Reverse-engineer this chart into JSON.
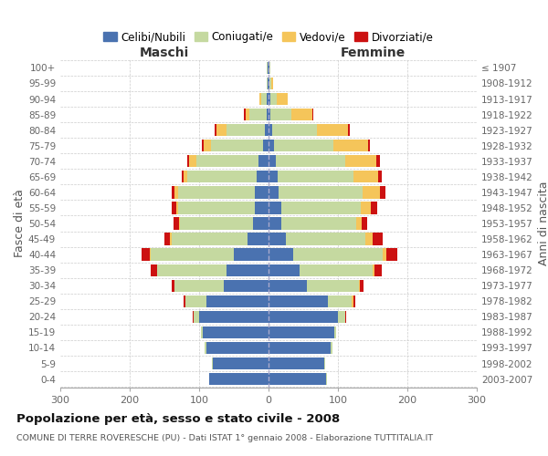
{
  "age_groups": [
    "0-4",
    "5-9",
    "10-14",
    "15-19",
    "20-24",
    "25-29",
    "30-34",
    "35-39",
    "40-44",
    "45-49",
    "50-54",
    "55-59",
    "60-64",
    "65-69",
    "70-74",
    "75-79",
    "80-84",
    "85-89",
    "90-94",
    "95-99",
    "100+"
  ],
  "birth_years": [
    "2003-2007",
    "1998-2002",
    "1993-1997",
    "1988-1992",
    "1983-1987",
    "1978-1982",
    "1973-1977",
    "1968-1972",
    "1963-1967",
    "1958-1962",
    "1953-1957",
    "1948-1952",
    "1943-1947",
    "1938-1942",
    "1933-1937",
    "1928-1932",
    "1923-1927",
    "1918-1922",
    "1913-1917",
    "1908-1912",
    "≤ 1907"
  ],
  "maschi": {
    "celibi": [
      85,
      80,
      90,
      95,
      100,
      90,
      65,
      60,
      50,
      30,
      22,
      20,
      20,
      17,
      14,
      8,
      5,
      3,
      2,
      1,
      1
    ],
    "coniugati": [
      1,
      1,
      2,
      3,
      8,
      30,
      70,
      100,
      120,
      110,
      105,
      110,
      110,
      100,
      90,
      75,
      55,
      25,
      8,
      2,
      1
    ],
    "vedovi": [
      0,
      0,
      0,
      0,
      0,
      0,
      0,
      0,
      1,
      2,
      2,
      3,
      5,
      5,
      10,
      10,
      15,
      5,
      3,
      0,
      0
    ],
    "divorziati": [
      0,
      0,
      0,
      0,
      1,
      3,
      5,
      10,
      12,
      8,
      8,
      7,
      5,
      3,
      3,
      3,
      2,
      2,
      0,
      0,
      0
    ]
  },
  "femmine": {
    "nubili": [
      83,
      80,
      90,
      95,
      100,
      85,
      55,
      45,
      35,
      25,
      18,
      18,
      15,
      13,
      10,
      8,
      5,
      3,
      2,
      1,
      1
    ],
    "coniugate": [
      1,
      1,
      2,
      3,
      10,
      35,
      75,
      105,
      130,
      115,
      108,
      115,
      120,
      110,
      100,
      85,
      65,
      30,
      10,
      3,
      1
    ],
    "vedove": [
      0,
      0,
      0,
      0,
      1,
      2,
      2,
      3,
      5,
      10,
      8,
      15,
      25,
      35,
      45,
      50,
      45,
      30,
      15,
      3,
      1
    ],
    "divorziate": [
      0,
      0,
      0,
      0,
      1,
      3,
      5,
      10,
      15,
      15,
      8,
      8,
      8,
      5,
      5,
      3,
      2,
      2,
      1,
      0,
      0
    ]
  },
  "colors": {
    "celibi": "#4a72b0",
    "coniugati": "#c5d9a0",
    "vedovi": "#f5c55a",
    "divorziati": "#cc1111"
  },
  "xlim": 300,
  "title": "Popolazione per età, sesso e stato civile - 2008",
  "subtitle": "COMUNE DI TERRE ROVERESCHE (PU) - Dati ISTAT 1° gennaio 2008 - Elaborazione TUTTITALIA.IT",
  "ylabel_left": "Fasce di età",
  "ylabel_right": "Anni di nascita",
  "xlabel_left": "Maschi",
  "xlabel_right": "Femmine",
  "legend_labels": [
    "Celibi/Nubili",
    "Coniugati/e",
    "Vedovi/e",
    "Divorziati/e"
  ],
  "bg_color": "#ffffff",
  "grid_color": "#cccccc",
  "bar_height": 0.78
}
